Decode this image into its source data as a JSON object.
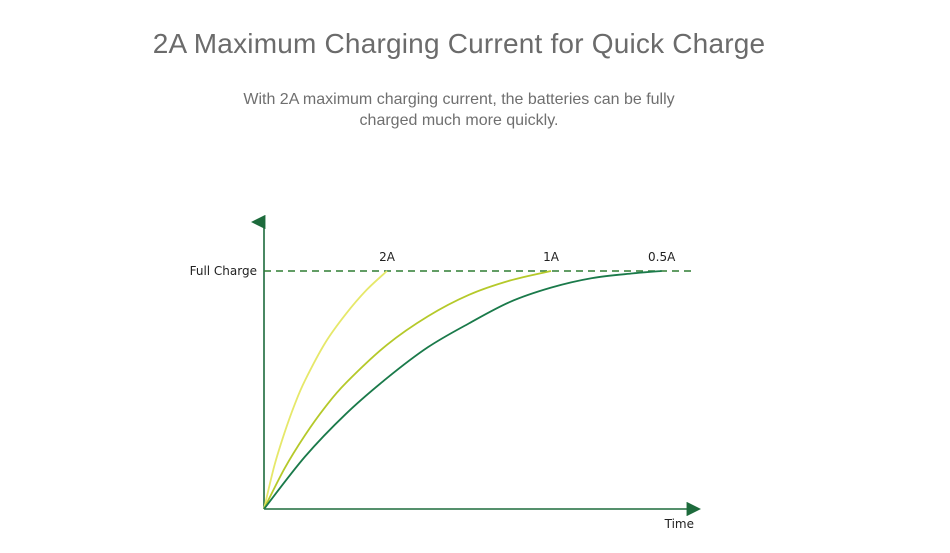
{
  "header": {
    "title": "2A Maximum Charging Current for Quick Charge",
    "subtitle_line1": "With 2A maximum charging current, the batteries can be fully",
    "subtitle_line2": "charged much more quickly."
  },
  "chart_data": {
    "type": "line",
    "title": "",
    "xlabel": "Time",
    "ylabel": "",
    "reference_line": {
      "label": "Full Charge",
      "y": 1.0,
      "style": "dashed",
      "color": "#2e7d32"
    },
    "xlim": [
      0,
      1.0
    ],
    "ylim": [
      0,
      1.0
    ],
    "axis_color": "#1d6b3c",
    "series": [
      {
        "name": "2A",
        "color": "#e6e86a",
        "x": [
          0,
          0.025,
          0.05,
          0.075,
          0.1,
          0.15,
          0.2,
          0.25,
          0.3
        ],
        "y": [
          0,
          0.18,
          0.32,
          0.44,
          0.54,
          0.7,
          0.82,
          0.92,
          1.0
        ]
      },
      {
        "name": "1A",
        "color": "#b5c92a",
        "x": [
          0,
          0.05,
          0.1,
          0.15,
          0.2,
          0.3,
          0.4,
          0.5,
          0.6,
          0.7
        ],
        "y": [
          0,
          0.17,
          0.31,
          0.43,
          0.53,
          0.69,
          0.81,
          0.9,
          0.96,
          1.0
        ]
      },
      {
        "name": "0.5A",
        "color": "#1a7a4a",
        "x": [
          0,
          0.1,
          0.2,
          0.3,
          0.4,
          0.5,
          0.6,
          0.7,
          0.8,
          0.9,
          0.97
        ],
        "y": [
          0,
          0.22,
          0.4,
          0.55,
          0.68,
          0.78,
          0.87,
          0.93,
          0.97,
          0.99,
          1.0
        ]
      }
    ],
    "grid": false,
    "legend": "none"
  }
}
